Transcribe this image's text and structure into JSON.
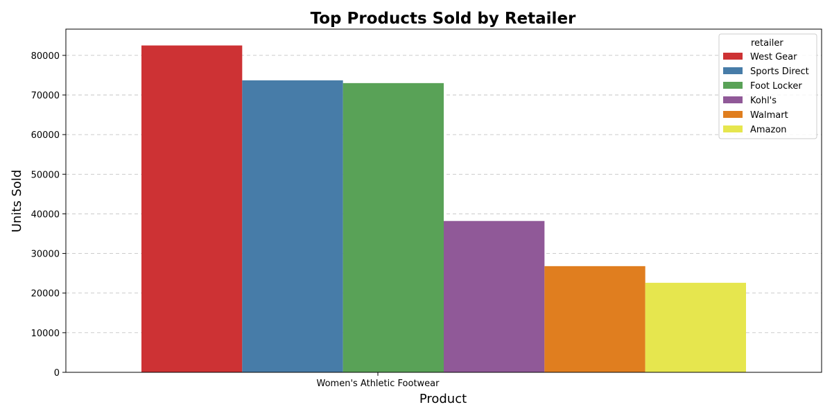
{
  "chart_data": {
    "type": "bar",
    "title": "Top Products Sold by Retailer",
    "xlabel": "Product",
    "ylabel": "Units Sold",
    "categories": [
      "Women's Athletic Footwear"
    ],
    "series": [
      {
        "name": "West Gear",
        "values": [
          82500
        ],
        "color": "#cd3234"
      },
      {
        "name": "Sports Direct",
        "values": [
          73700
        ],
        "color": "#477ca8"
      },
      {
        "name": "Foot Locker",
        "values": [
          73000
        ],
        "color": "#59a257"
      },
      {
        "name": "Kohl's",
        "values": [
          38200
        ],
        "color": "#905998"
      },
      {
        "name": "Walmart",
        "values": [
          26800
        ],
        "color": "#e07e1f"
      },
      {
        "name": "Amazon",
        "values": [
          22600
        ],
        "color": "#e6e64e"
      }
    ],
    "ylim": [
      0,
      86625
    ],
    "yticks": [
      0,
      10000,
      20000,
      30000,
      40000,
      50000,
      60000,
      70000,
      80000
    ],
    "grid": true,
    "legend": {
      "title": "retailer",
      "position": "top-right"
    }
  }
}
